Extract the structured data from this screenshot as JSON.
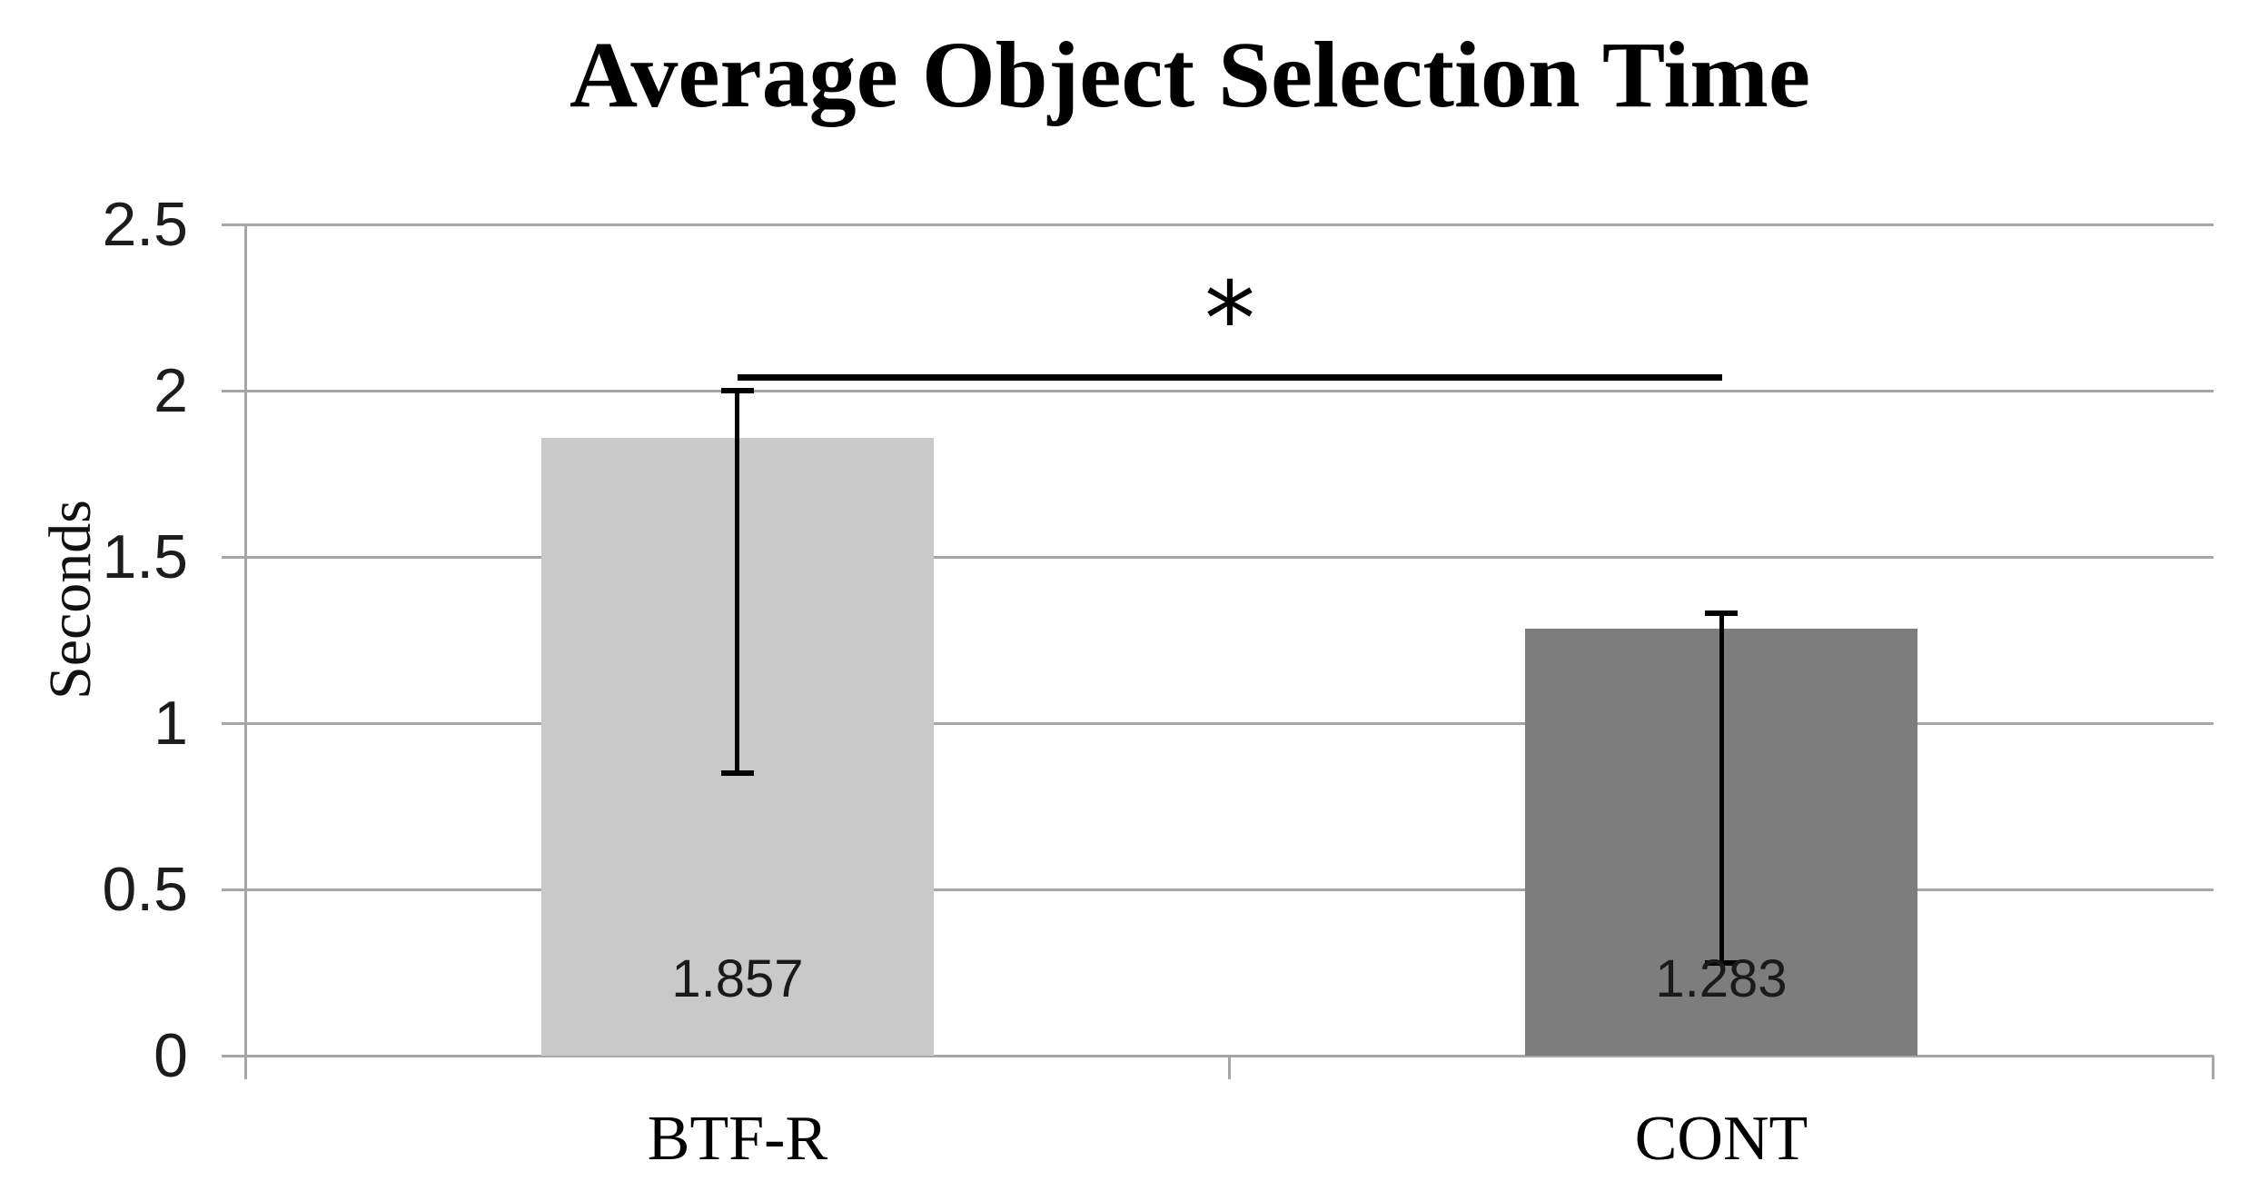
{
  "chart_data": {
    "type": "bar",
    "title": "Average Object Selection Time",
    "ylabel": "Seconds",
    "xlabel": "",
    "categories": [
      "BTF-R",
      "CONT"
    ],
    "values": [
      1.857,
      1.283
    ],
    "data_labels": [
      "1.857",
      "1.283"
    ],
    "bar_colors": [
      "#c9c9c9",
      "#7d7d7d"
    ],
    "ylim": [
      0,
      2.5
    ],
    "yticks": [
      "0",
      "0.5",
      "1",
      "1.5",
      "2",
      "2.5"
    ],
    "grid": true,
    "legend": "none",
    "error_bars": [
      {
        "low": 0.85,
        "high": 2.0
      },
      {
        "low": 0.28,
        "high": 1.33
      }
    ],
    "significance": {
      "label": "*",
      "y": 2.04,
      "between": [
        "BTF-R",
        "CONT"
      ]
    },
    "colors": {
      "gridline": "#a6a6a6",
      "axis": "#a6a6a6",
      "error_bar": "#000000",
      "sig_line": "#000000",
      "label_text": "#1a1a1a"
    }
  }
}
